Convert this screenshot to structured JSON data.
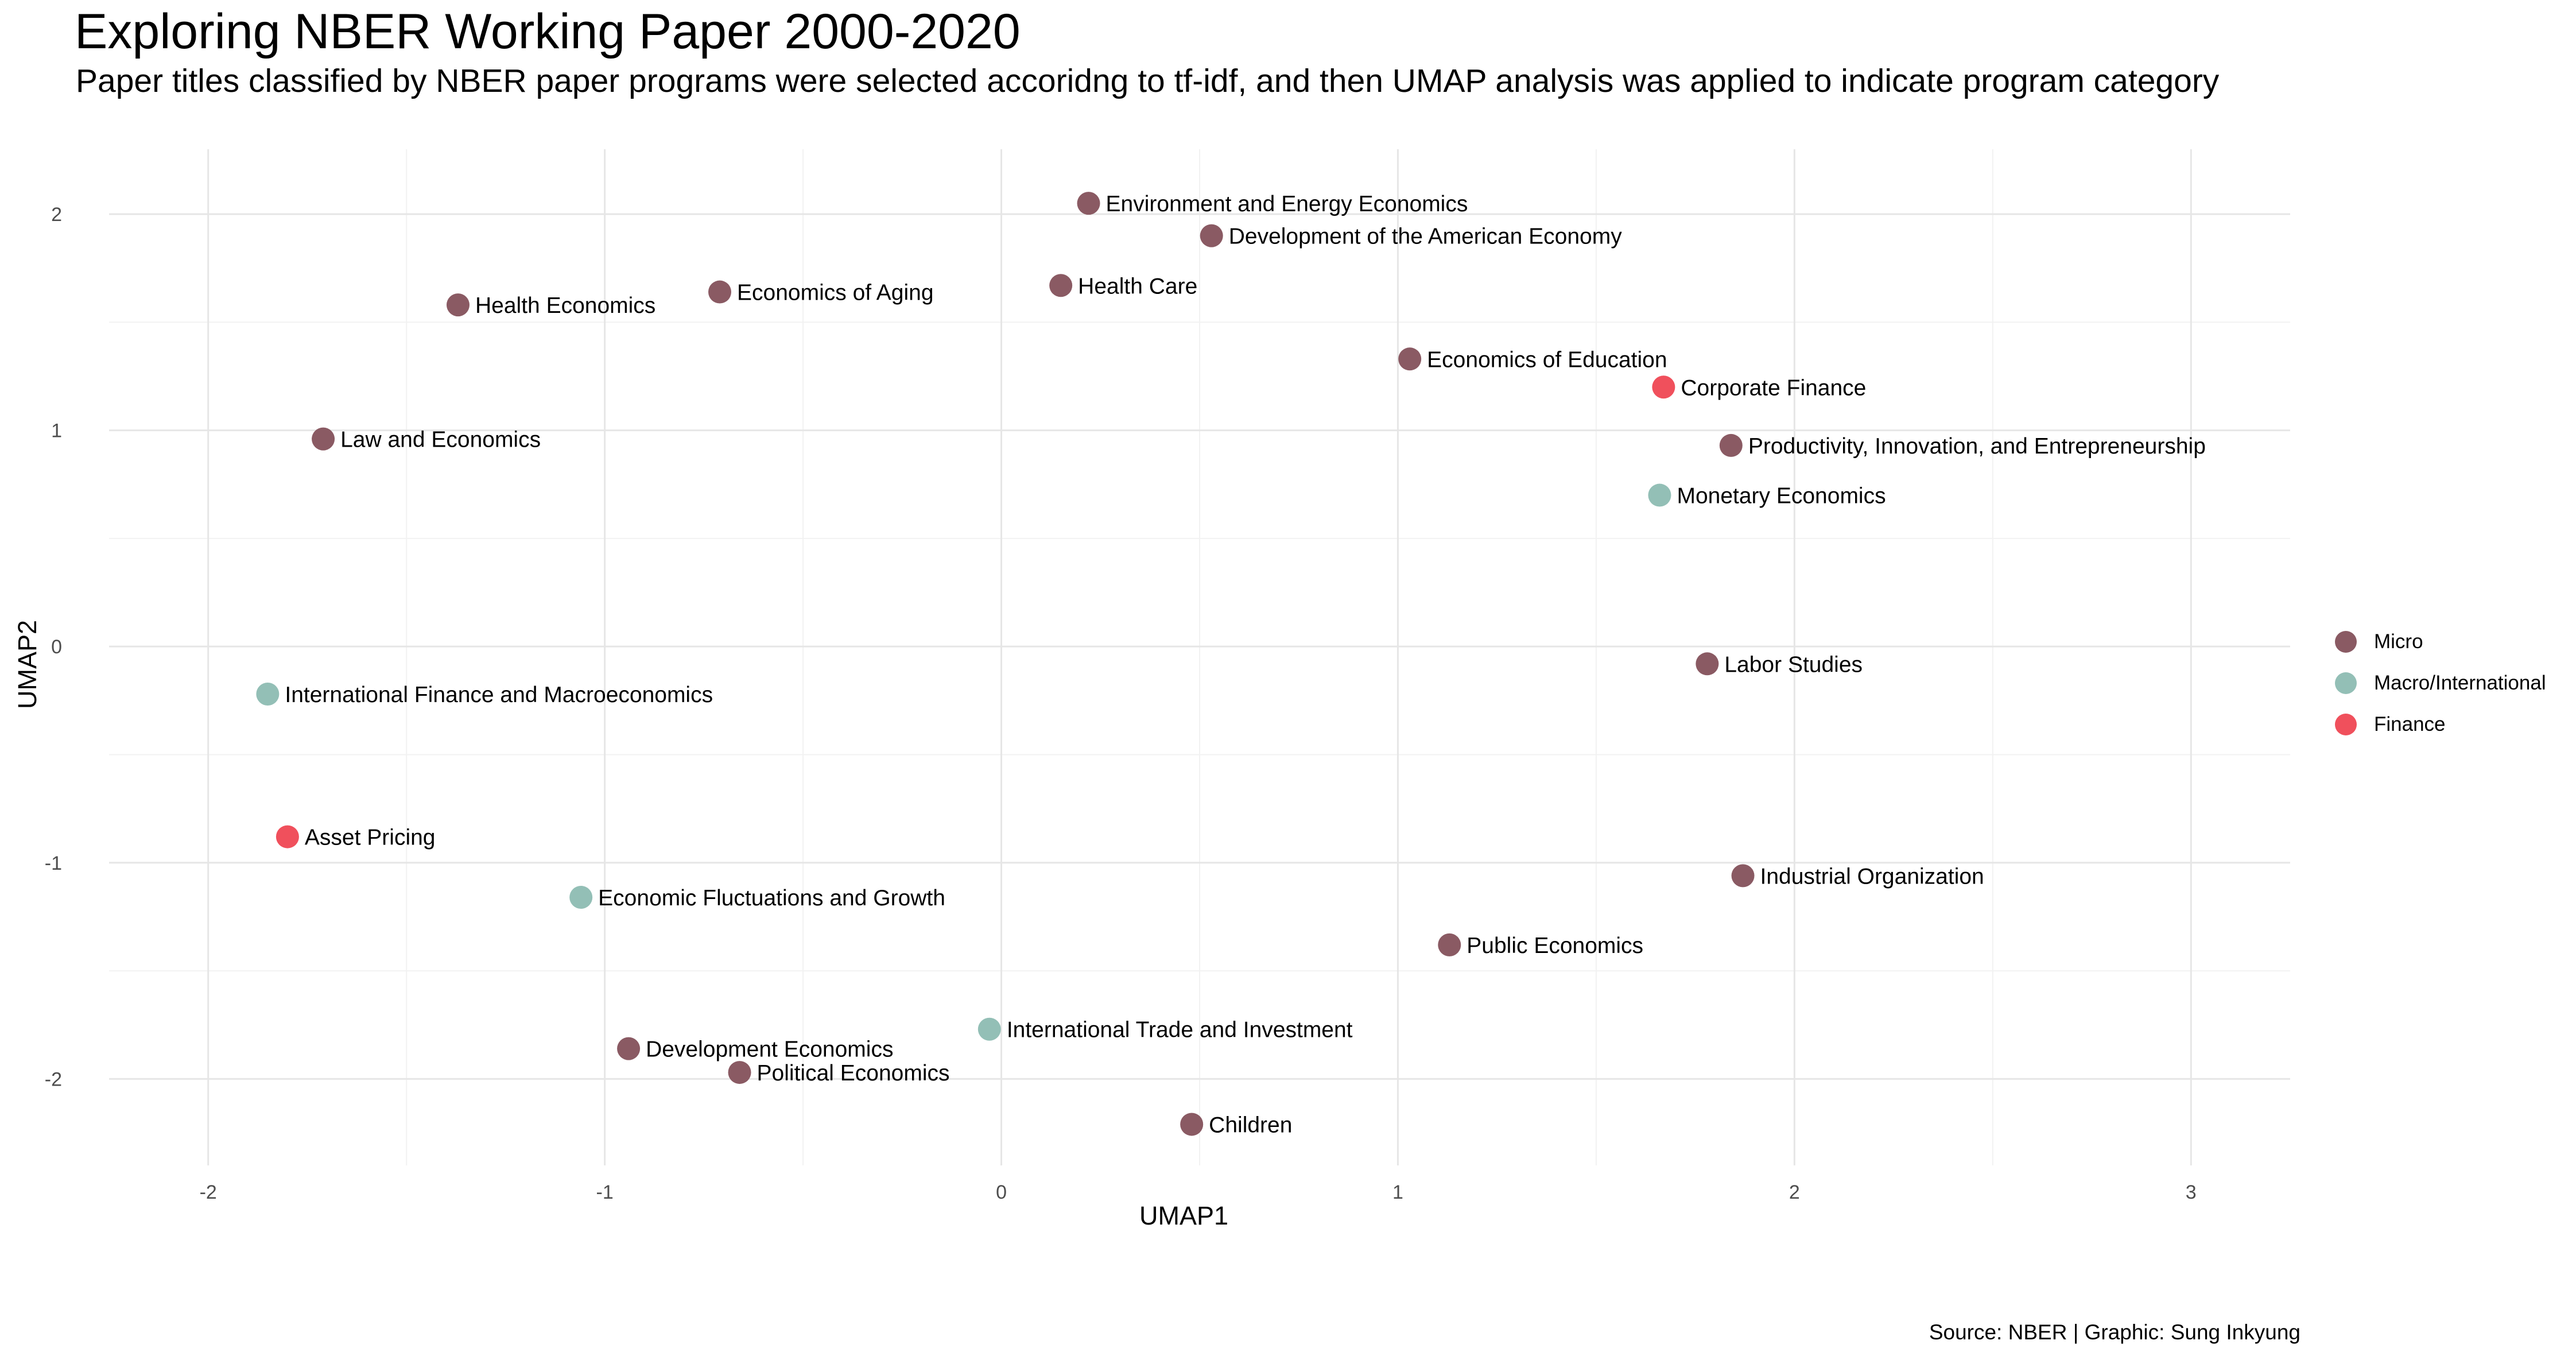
{
  "title": "Exploring NBER Working Paper 2000-2020",
  "subtitle": "Paper titles classified by NBER paper programs were selected accoridng to tf-idf, and then UMAP analysis was applied to indicate program category",
  "caption": "Source: NBER | Graphic: Sung Inkyung",
  "colors": {
    "Micro": "#8a5a63",
    "Macro/International": "#93bfb6",
    "Finance": "#f0505c"
  },
  "legend": [
    {
      "label": "Micro",
      "group": "Micro"
    },
    {
      "label": "Macro/International",
      "group": "Macro/International"
    },
    {
      "label": "Finance",
      "group": "Finance"
    }
  ],
  "chart_data": {
    "type": "scatter",
    "xlabel": "UMAP1",
    "ylabel": "UMAP2",
    "xlim": [
      -2.25,
      3.25
    ],
    "ylim": [
      -2.4,
      2.3
    ],
    "xticks": [
      -2,
      -1,
      0,
      1,
      2,
      3
    ],
    "yticks": [
      -2,
      -1,
      0,
      1,
      2
    ],
    "x_tick_labels": [
      "-2",
      "-1",
      "0",
      "1",
      "2",
      "3"
    ],
    "y_tick_labels": [
      "-2",
      "-1",
      "0",
      "1",
      "2"
    ],
    "grid": true,
    "legend_position": "right",
    "points": [
      {
        "label": "Environment and Energy Economics",
        "x": 0.22,
        "y": 2.05,
        "group": "Micro"
      },
      {
        "label": "Development of the American Economy",
        "x": 0.53,
        "y": 1.9,
        "group": "Micro"
      },
      {
        "label": "Health Care",
        "x": 0.15,
        "y": 1.67,
        "group": "Micro"
      },
      {
        "label": "Economics of Aging",
        "x": -0.71,
        "y": 1.64,
        "group": "Micro"
      },
      {
        "label": "Health Economics",
        "x": -1.37,
        "y": 1.58,
        "group": "Micro"
      },
      {
        "label": "Economics of Education",
        "x": 1.03,
        "y": 1.33,
        "group": "Micro"
      },
      {
        "label": "Corporate Finance",
        "x": 1.67,
        "y": 1.2,
        "group": "Finance"
      },
      {
        "label": "Law and Economics",
        "x": -1.71,
        "y": 0.96,
        "group": "Micro"
      },
      {
        "label": "Productivity, Innovation, and Entrepreneurship",
        "x": 1.84,
        "y": 0.93,
        "group": "Micro"
      },
      {
        "label": "Monetary Economics",
        "x": 1.66,
        "y": 0.7,
        "group": "Macro/International"
      },
      {
        "label": "Labor Studies",
        "x": 1.78,
        "y": -0.08,
        "group": "Micro"
      },
      {
        "label": "International Finance and Macroeconomics",
        "x": -1.85,
        "y": -0.22,
        "group": "Macro/International"
      },
      {
        "label": "Asset Pricing",
        "x": -1.8,
        "y": -0.88,
        "group": "Finance"
      },
      {
        "label": "Industrial Organization",
        "x": 1.87,
        "y": -1.06,
        "group": "Micro"
      },
      {
        "label": "Economic Fluctuations and Growth",
        "x": -1.06,
        "y": -1.16,
        "group": "Macro/International"
      },
      {
        "label": "Public Economics",
        "x": 1.13,
        "y": -1.38,
        "group": "Micro"
      },
      {
        "label": "International Trade and Investment",
        "x": -0.03,
        "y": -1.77,
        "group": "Macro/International"
      },
      {
        "label": "Development Economics",
        "x": -0.94,
        "y": -1.86,
        "group": "Micro"
      },
      {
        "label": "Political Economics",
        "x": -0.66,
        "y": -1.97,
        "group": "Micro"
      },
      {
        "label": "Children",
        "x": 0.48,
        "y": -2.21,
        "group": "Micro"
      }
    ]
  }
}
